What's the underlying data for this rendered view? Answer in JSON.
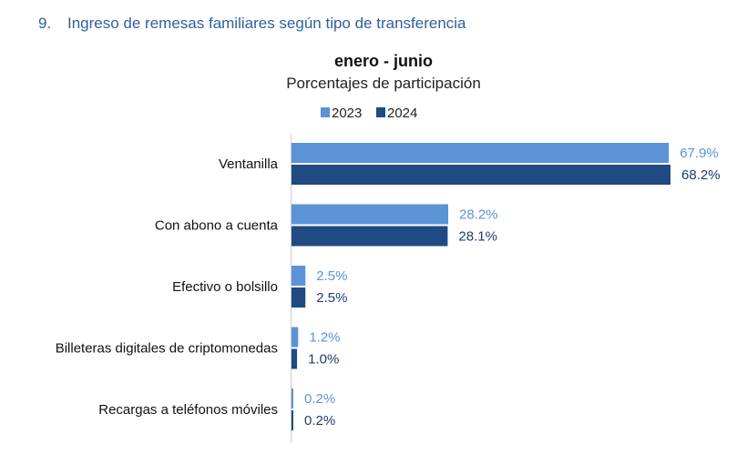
{
  "header": {
    "number": "9.",
    "text": "Ingreso de remesas familiares según tipo de transferencia"
  },
  "chart_data": {
    "type": "bar",
    "orientation": "horizontal",
    "title": "enero - junio",
    "subtitle": "Porcentajes de participación",
    "categories": [
      "Ventanilla",
      "Con abono a cuenta",
      "Efectivo o bolsillo",
      "Billeteras digitales de criptomonedas",
      "Recargas a teléfonos móviles"
    ],
    "series": [
      {
        "name": "2023",
        "values": [
          67.9,
          28.2,
          2.5,
          1.2,
          0.2
        ],
        "labels": [
          "67.9%",
          "28.2%",
          "2.5%",
          "1.2%",
          "0.2%"
        ],
        "color": "#5b93d6",
        "label_color": "#5b93d6"
      },
      {
        "name": "2024",
        "values": [
          68.2,
          28.1,
          2.5,
          1.0,
          0.2
        ],
        "labels": [
          "68.2%",
          "28.1%",
          "2.5%",
          "1.0%",
          "0.2%"
        ],
        "color": "#1f4a82",
        "label_color": "#1f3d6b"
      }
    ],
    "xlim": [
      0,
      100
    ],
    "grid": false,
    "legend_position": "top"
  }
}
